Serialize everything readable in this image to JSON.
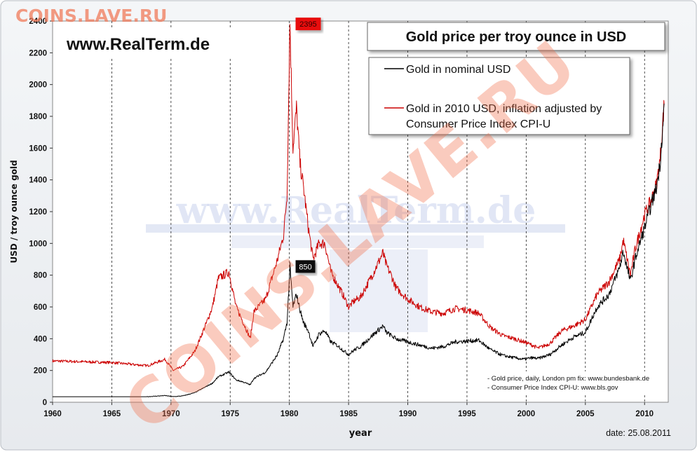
{
  "watermark_top": "COINS.LAVE.RU",
  "watermark_diag": "COINS.LAVE.RU",
  "watermark_bg": "www.RealTerm.de",
  "site": "www.RealTerm.de",
  "date_label": "date: 25.08.2011",
  "sources": [
    "- Gold price, daily, London pm fix: www.bundesbank.de",
    "- Consumer Price Index CPI-U: www.bls.gov"
  ],
  "colors": {
    "nominal": "#000000",
    "inflation": "#cc0000",
    "callout_peak_bg": "#e81010",
    "callout_850_bg": "#111111"
  },
  "chart_data": {
    "type": "line",
    "title": "Gold price per troy ounce in USD",
    "xlabel": "year",
    "ylabel": "USD / troy ounce gold",
    "xlim": [
      1960,
      2012
    ],
    "ylim": [
      0,
      2400
    ],
    "grid": {
      "x": true,
      "y": false
    },
    "xticks": [
      1960,
      1965,
      1970,
      1975,
      1980,
      1985,
      1990,
      1995,
      2000,
      2005,
      2010
    ],
    "yticks": [
      0,
      200,
      400,
      600,
      800,
      1000,
      1200,
      1400,
      1600,
      1800,
      2000,
      2200,
      2400
    ],
    "legend_position": "top-right",
    "series": [
      {
        "name": "Gold in nominal USD",
        "color": "#000000",
        "x": [
          1960,
          1968,
          1969.5,
          1970.2,
          1971,
          1972,
          1973,
          1973.5,
          1974,
          1974.9,
          1975.5,
          1976,
          1976.7,
          1977,
          1978,
          1979,
          1979.5,
          1979.8,
          1980.05,
          1980.3,
          1980.6,
          1980.9,
          1981.2,
          1981.6,
          1982,
          1982.5,
          1983,
          1983.5,
          1984,
          1984.5,
          1985,
          1985.5,
          1986,
          1987,
          1987.9,
          1988.2,
          1988.6,
          1989,
          1990,
          1991,
          1992,
          1993,
          1994,
          1995,
          1996,
          1997,
          1998,
          1999,
          1999.8,
          2000.5,
          2001,
          2002,
          2003,
          2004,
          2005,
          2006,
          2006.5,
          2007,
          2007.9,
          2008.2,
          2008.8,
          2009.2,
          2010,
          2010.5,
          2011,
          2011.3,
          2011.6,
          2011.65
        ],
        "y": [
          35,
          35,
          42,
          35,
          40,
          60,
          100,
          120,
          160,
          190,
          140,
          130,
          110,
          150,
          190,
          300,
          400,
          500,
          850,
          600,
          680,
          580,
          500,
          450,
          350,
          430,
          450,
          380,
          360,
          330,
          300,
          330,
          350,
          420,
          480,
          440,
          420,
          400,
          380,
          360,
          340,
          350,
          380,
          385,
          390,
          330,
          295,
          280,
          270,
          280,
          275,
          300,
          360,
          410,
          440,
          600,
          640,
          680,
          850,
          950,
          760,
          900,
          1100,
          1230,
          1350,
          1500,
          1800,
          1880
        ]
      },
      {
        "name": "Gold in 2010 USD, inflation adjusted by Consumer Price Index CPI-U",
        "color": "#cc0000",
        "x": [
          1960,
          1965,
          1968,
          1969.5,
          1970.2,
          1971,
          1972,
          1973,
          1973.5,
          1974,
          1974.9,
          1975.5,
          1976,
          1976.7,
          1977,
          1978,
          1979,
          1979.5,
          1979.8,
          1980.05,
          1980.3,
          1980.6,
          1980.9,
          1981.2,
          1981.6,
          1982,
          1982.5,
          1983,
          1983.5,
          1984,
          1984.5,
          1985,
          1985.5,
          1986,
          1987,
          1987.9,
          1988.2,
          1988.6,
          1989,
          1990,
          1991,
          1992,
          1993,
          1994,
          1995,
          1996,
          1997,
          1998,
          1999,
          1999.8,
          2000.5,
          2001,
          2002,
          2003,
          2004,
          2005,
          2006,
          2006.5,
          2007,
          2007.9,
          2008.2,
          2008.8,
          2009.2,
          2010,
          2010.5,
          2011,
          2011.3,
          2011.6,
          2011.65
        ],
        "y": [
          260,
          250,
          230,
          270,
          200,
          225,
          320,
          500,
          600,
          780,
          820,
          600,
          520,
          400,
          570,
          650,
          900,
          1050,
          1300,
          2395,
          1600,
          1850,
          1500,
          1350,
          1100,
          900,
          1000,
          1000,
          820,
          750,
          680,
          600,
          640,
          660,
          800,
          940,
          860,
          800,
          720,
          650,
          600,
          570,
          560,
          590,
          580,
          560,
          470,
          420,
          400,
          380,
          360,
          340,
          370,
          450,
          480,
          520,
          680,
          720,
          760,
          900,
          1020,
          800,
          960,
          1180,
          1260,
          1370,
          1520,
          1820,
          1880
        ]
      }
    ],
    "annotations": [
      {
        "text": "2395",
        "x": 1980.05,
        "y": 2395
      },
      {
        "text": "850",
        "x": 1980.05,
        "y": 850
      }
    ]
  }
}
